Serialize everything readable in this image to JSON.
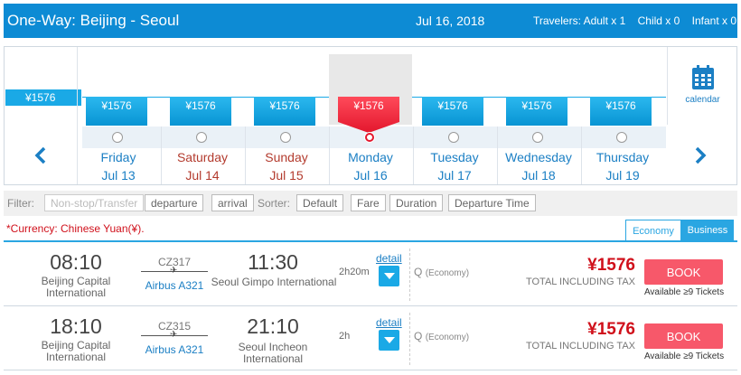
{
  "header": {
    "route": "One-Way:  Beijing - Seoul",
    "date": "Jul 16, 2018",
    "travelers_label": "Travelers: Adult x 1",
    "child": "Child x 0",
    "infant": "Infant x 0"
  },
  "strip": {
    "lowest_price": "¥1576",
    "calendar_label": "calendar",
    "days": [
      {
        "name": "Friday",
        "date": "Jul 13",
        "price": "¥1576",
        "weekend": false,
        "selected": false
      },
      {
        "name": "Saturday",
        "date": "Jul 14",
        "price": "¥1576",
        "weekend": true,
        "selected": false
      },
      {
        "name": "Sunday",
        "date": "Jul 15",
        "price": "¥1576",
        "weekend": true,
        "selected": false
      },
      {
        "name": "Monday",
        "date": "Jul 16",
        "price": "¥1576",
        "weekend": false,
        "selected": true
      },
      {
        "name": "Tuesday",
        "date": "Jul 17",
        "price": "¥1576",
        "weekend": false,
        "selected": false
      },
      {
        "name": "Wednesday",
        "date": "Jul 18",
        "price": "¥1576",
        "weekend": false,
        "selected": false
      },
      {
        "name": "Thursday",
        "date": "Jul 19",
        "price": "¥1576",
        "weekend": false,
        "selected": false
      }
    ]
  },
  "filters": {
    "filter_label": "Filter:",
    "nonstop": "Non-stop/Transfer",
    "departure": "departure",
    "arrival": "arrival",
    "sorter_label": "Sorter:",
    "default": "Default",
    "fare": "Fare",
    "duration": "Duration",
    "departure_time": "Departure Time"
  },
  "currency_note": "*Currency:  Chinese Yuan(¥).",
  "tabs": {
    "economy": "Economy",
    "business": "Business"
  },
  "flights": [
    {
      "dep_time": "08:10",
      "dep_airport": "Beijing Capital International",
      "flight_no": "CZ317",
      "aircraft": "Airbus A321",
      "arr_time": "11:30",
      "arr_airport": "Seoul Gimpo International",
      "duration": "2h20m",
      "detail": "detail",
      "cabin_q": "Q",
      "cabin": "(Economy)",
      "price": "¥1576",
      "tax_note": "TOTAL INCLUDING TAX",
      "book": "BOOK",
      "availability": "Available ≥9 Tickets"
    },
    {
      "dep_time": "18:10",
      "dep_airport": "Beijing Capital International",
      "flight_no": "CZ315",
      "aircraft": "Airbus A321",
      "arr_time": "21:10",
      "arr_airport": "Seoul Incheon International",
      "duration": "2h",
      "detail": "detail",
      "cabin_q": "Q",
      "cabin": "(Economy)",
      "price": "¥1576",
      "tax_note": "TOTAL INCLUDING TAX",
      "book": "BOOK",
      "availability": "Available ≥9 Tickets"
    }
  ],
  "icons": {
    "prev": "chevron-left-icon",
    "next": "chevron-right-icon",
    "calendar": "calendar-icon",
    "plane": "airplane-icon",
    "dropdown": "chevron-down-icon"
  },
  "colors": {
    "header": "#0d8bd4",
    "price_tag": "#1aa9e6",
    "selected_tag": "#e3172d",
    "book": "#f7586a",
    "price_text": "#d0101b"
  }
}
